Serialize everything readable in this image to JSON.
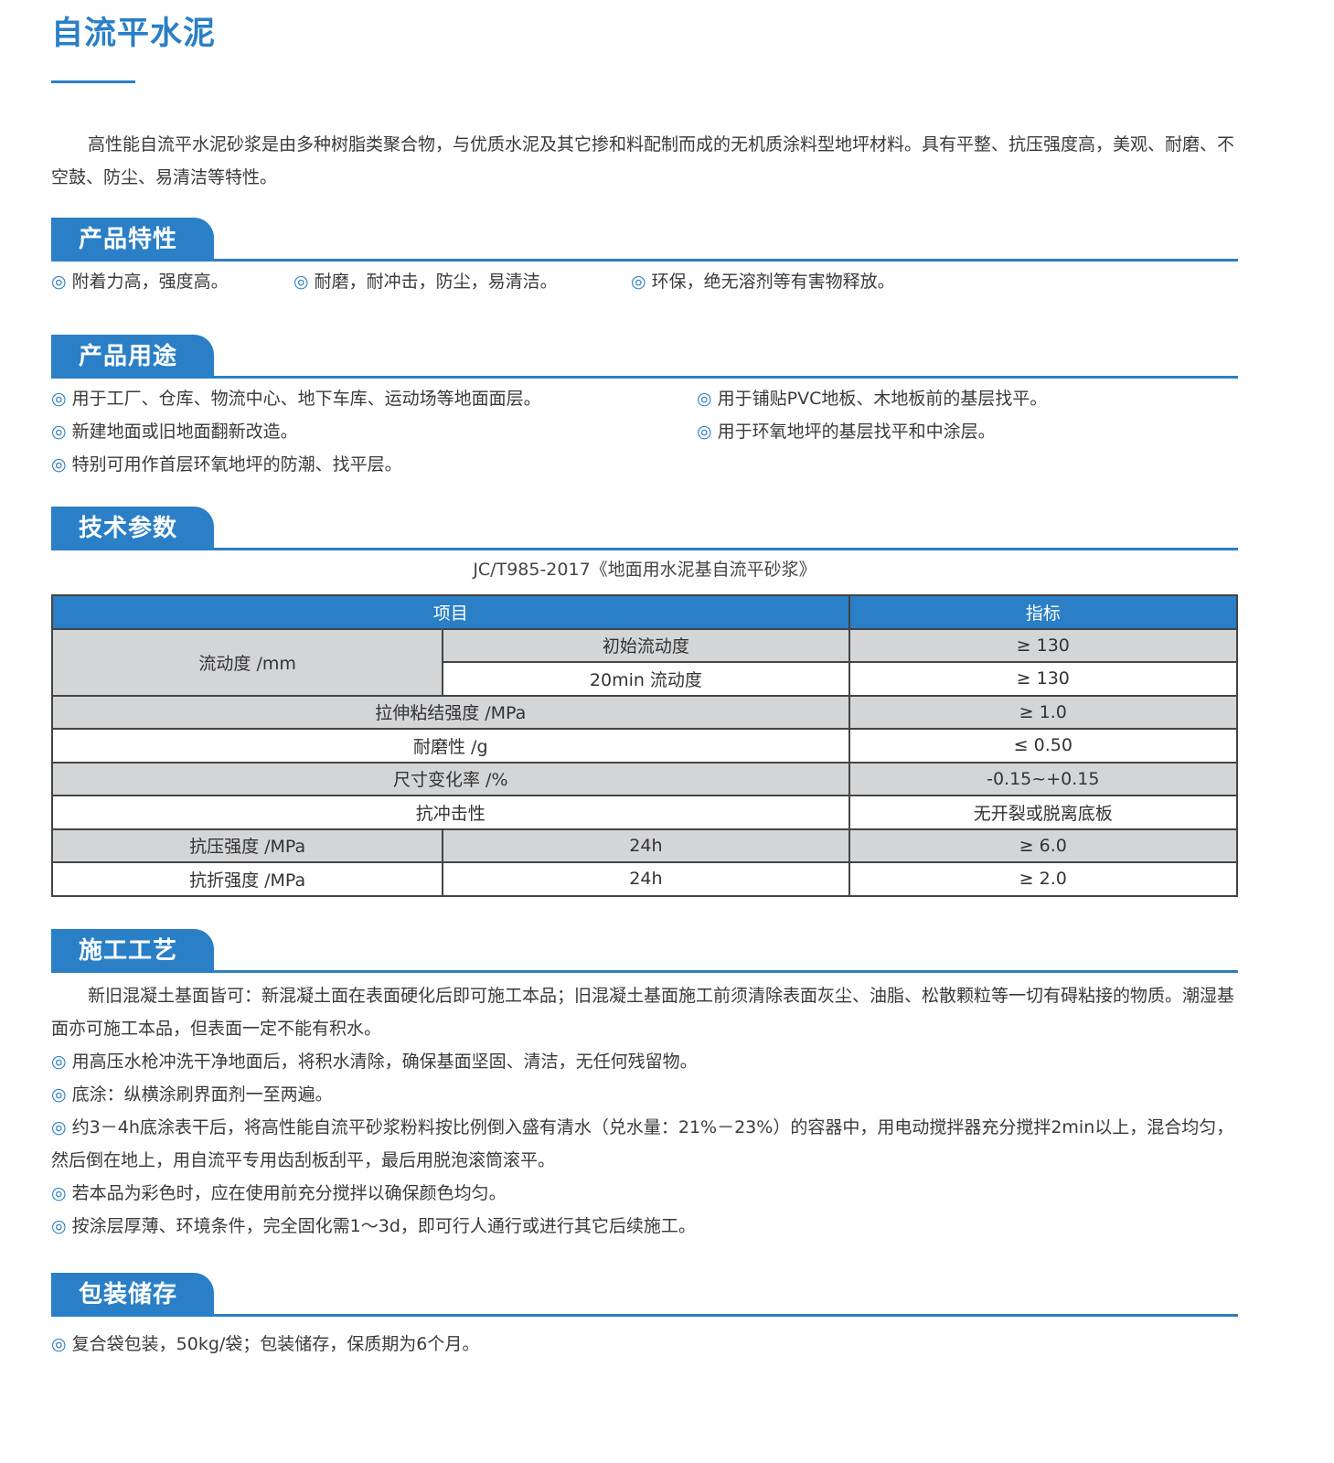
{
  "title": "自流平水泥",
  "intro": "高性能自流平水泥砂浆是由多种树脂类聚合物，与优质水泥及其它掺和料配制而成的无机质涂料型地坪材料。具有平整、抗压强度高，美观、耐磨、不空鼓、防尘、易清洁等特性。",
  "bullet": "◎",
  "features": {
    "heading": "产品特性",
    "items": [
      "附着力高，强度高。",
      "耐磨，耐冲击，防尘，易清洁。",
      "环保，绝无溶剂等有害物释放。"
    ]
  },
  "uses": {
    "heading": "产品用途",
    "items": [
      "用于工厂、仓库、物流中心、地下车库、运动场等地面面层。",
      "用于铺贴PVC地板、木地板前的基层找平。",
      "新建地面或旧地面翻新改造。",
      "用于环氧地坪的基层找平和中涂层。",
      "特别可用作首层环氧地坪的防潮、找平层。"
    ]
  },
  "tech": {
    "heading": "技术参数",
    "standard": "JC/T985-2017《地面用水泥基自流平砂浆》",
    "headers": [
      "项目",
      "指标"
    ],
    "rows": [
      {
        "item": "流动度 /mm",
        "sub": "初始流动度",
        "value": "≥ 130"
      },
      {
        "sub": "20min 流动度",
        "value": "≥ 130"
      },
      {
        "item": "拉伸粘结强度 /MPa",
        "value": "≥ 1.0"
      },
      {
        "item": "耐磨性 /g",
        "value": "≤ 0.50"
      },
      {
        "item": "尺寸变化率 /%",
        "value": "-0.15~+0.15"
      },
      {
        "item": "抗冲击性",
        "value": "无开裂或脱离底板"
      },
      {
        "item": "抗压强度 /MPa",
        "sub": "24h",
        "value": "≥ 6.0"
      },
      {
        "item": "抗折强度 /MPa",
        "sub": "24h",
        "value": "≥ 2.0"
      }
    ]
  },
  "construction": {
    "heading": "施工工艺",
    "intro": "新旧混凝土基面皆可：新混凝土面在表面硬化后即可施工本品；旧混凝土基面施工前须清除表面灰尘、油脂、松散颗粒等一切有碍粘接的物质。潮湿基面亦可施工本品，但表面一定不能有积水。",
    "items": [
      "用高压水枪冲洗干净地面后，将积水清除，确保基面坚固、清洁，无任何残留物。",
      "底涂：纵横涂刷界面剂一至两遍。",
      "约3－4h底涂表干后，将高性能自流平砂浆粉料按比例倒入盛有清水（兑水量：21%－23%）的容器中，用电动搅拌器充分搅拌2min以上，混合均匀，然后倒在地上，用自流平专用齿刮板刮平，最后用脱泡滚筒滚平。",
      "若本品为彩色时，应在使用前充分搅拌以确保颜色均匀。",
      "按涂层厚薄、环境条件，完全固化需1～3d，即可行人通行或进行其它后续施工。"
    ]
  },
  "packaging": {
    "heading": "包装储存",
    "items": [
      "复合袋包装，50kg/袋；包装储存，保质期为6个月。"
    ]
  },
  "colors": {
    "accent": "#2a7fc6",
    "row_gray": "#d4d5d7"
  }
}
